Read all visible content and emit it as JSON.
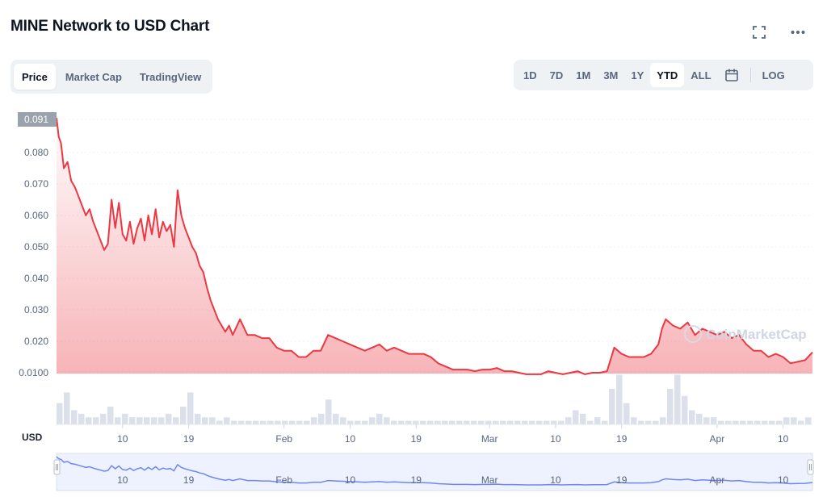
{
  "header": {
    "title": "MINE Network to USD Chart"
  },
  "tabs": [
    {
      "label": "Price",
      "active": true
    },
    {
      "label": "Market Cap",
      "active": false
    },
    {
      "label": "TradingView",
      "active": false
    }
  ],
  "ranges": {
    "items": [
      "1D",
      "7D",
      "1M",
      "3M",
      "1Y",
      "YTD",
      "ALL"
    ],
    "active": "YTD",
    "log_label": "LOG"
  },
  "icons": {
    "fullscreen": "fullscreen-icon",
    "more": "more-icon",
    "calendar": "calendar-icon"
  },
  "colors": {
    "line": "#ea3943",
    "fill_top": "#ea3943",
    "volume": "#cfd6e4",
    "navigator_line": "#6f86f5",
    "navigator_fill": "#eef1fe"
  },
  "watermark": "CoinMarketCap",
  "currency_label": "USD",
  "chart_data": {
    "type": "line",
    "current_value_label": "0.091",
    "yticks": [
      "0.0100",
      "0.020",
      "0.030",
      "0.040",
      "0.050",
      "0.060",
      "0.070",
      "0.080"
    ],
    "ylim": [
      0.0,
      0.091
    ],
    "xticks": [
      "10",
      "19",
      "Feb",
      "10",
      "19",
      "Mar",
      "10",
      "19",
      "Apr",
      "10"
    ],
    "navigator_xticks": [
      "10",
      "19",
      "Feb",
      "10",
      "19",
      "Mar",
      "10",
      "19",
      "Apr",
      "10"
    ],
    "x_range_days": [
      1,
      104
    ],
    "xtick_days": [
      10,
      19,
      32,
      41,
      50,
      60,
      69,
      78,
      91,
      100
    ],
    "series": [
      {
        "days": [
          1,
          1.3,
          1.6,
          2,
          2.5,
          3,
          3.5,
          4,
          5,
          5.5,
          6,
          6.5,
          7,
          7.5,
          8,
          8.5,
          9,
          9.5,
          10,
          10.5,
          11,
          11.5,
          12,
          12.5,
          13,
          13.5,
          14,
          14.5,
          15,
          15.5,
          16,
          16.5,
          17,
          17.5,
          18,
          18.5,
          19,
          19.5,
          20,
          20.5,
          21,
          21.5,
          22,
          23,
          24,
          24.5,
          25,
          26,
          27,
          28,
          29,
          30,
          31,
          32,
          33,
          34,
          35,
          36,
          37,
          38,
          39,
          40,
          41,
          42,
          43,
          44,
          45,
          46,
          47,
          48,
          49,
          50,
          51,
          52,
          53,
          54,
          55,
          56,
          57,
          58,
          59,
          60,
          61,
          62,
          63,
          64,
          65,
          66,
          67,
          68,
          69,
          70,
          71,
          72,
          73,
          74,
          75,
          76,
          77,
          78,
          79,
          80,
          81,
          82,
          83,
          83.5,
          84,
          85,
          86,
          87,
          88,
          89,
          90,
          91,
          92,
          93,
          94,
          95,
          96,
          97,
          98,
          99,
          100,
          101,
          102,
          103,
          104
        ],
        "values": [
          0.091,
          0.085,
          0.083,
          0.075,
          0.077,
          0.071,
          0.069,
          0.066,
          0.06,
          0.062,
          0.058,
          0.055,
          0.052,
          0.049,
          0.051,
          0.065,
          0.056,
          0.064,
          0.054,
          0.052,
          0.058,
          0.051,
          0.056,
          0.059,
          0.052,
          0.06,
          0.054,
          0.062,
          0.053,
          0.058,
          0.055,
          0.057,
          0.05,
          0.068,
          0.06,
          0.056,
          0.053,
          0.05,
          0.048,
          0.044,
          0.042,
          0.037,
          0.033,
          0.027,
          0.023,
          0.025,
          0.022,
          0.027,
          0.022,
          0.022,
          0.021,
          0.021,
          0.018,
          0.017,
          0.017,
          0.015,
          0.015,
          0.017,
          0.017,
          0.022,
          0.021,
          0.02,
          0.019,
          0.018,
          0.017,
          0.018,
          0.019,
          0.017,
          0.018,
          0.017,
          0.016,
          0.016,
          0.016,
          0.015,
          0.013,
          0.012,
          0.011,
          0.011,
          0.011,
          0.0105,
          0.011,
          0.011,
          0.0115,
          0.0105,
          0.0105,
          0.01,
          0.0095,
          0.0095,
          0.0095,
          0.0105,
          0.01,
          0.0095,
          0.01,
          0.0105,
          0.0095,
          0.01,
          0.01,
          0.0105,
          0.018,
          0.016,
          0.015,
          0.015,
          0.015,
          0.016,
          0.019,
          0.024,
          0.027,
          0.025,
          0.024,
          0.026,
          0.022,
          0.024,
          0.023,
          0.022,
          0.023,
          0.021,
          0.022,
          0.019,
          0.017,
          0.017,
          0.015,
          0.016,
          0.015,
          0.013,
          0.0135,
          0.014,
          0.0165
        ]
      }
    ],
    "volume": [
      6,
      9,
      4,
      3,
      2,
      2,
      3,
      5,
      2,
      3,
      2,
      2,
      2,
      2,
      2,
      3,
      2,
      5,
      9,
      3,
      2,
      2,
      1,
      2,
      1,
      1,
      1,
      1,
      1,
      1,
      1,
      1,
      1,
      1,
      1,
      2,
      3,
      7,
      3,
      2,
      1,
      1,
      1,
      2,
      3,
      2,
      1,
      1,
      1,
      1,
      1,
      1,
      1,
      1,
      1,
      1,
      1,
      1,
      1,
      1,
      1,
      1,
      1,
      1,
      1,
      1,
      1,
      1,
      1,
      1,
      2,
      4,
      3,
      1,
      2,
      1,
      10,
      14,
      6,
      2,
      1,
      1,
      1,
      2,
      10,
      14,
      8,
      4,
      3,
      2,
      2,
      1,
      1,
      1,
      1,
      1,
      1,
      1,
      1,
      1,
      2,
      2,
      1,
      2
    ],
    "grid": true,
    "legend": "none"
  }
}
